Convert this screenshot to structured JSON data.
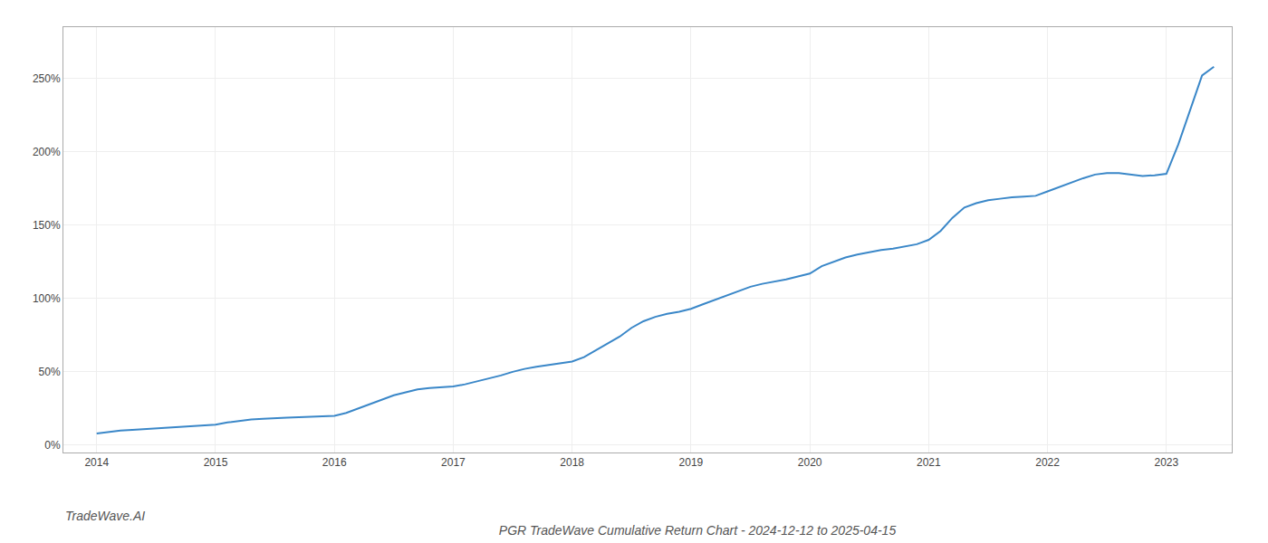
{
  "chart_data": {
    "type": "line",
    "title": "PGR TradeWave Cumulative Return Chart - 2024-12-12 to 2025-04-15",
    "annotations": [
      "TradeWave.AI"
    ],
    "color": "#3a87c8",
    "grid": true,
    "xlim": [
      2013.72,
      2023.55
    ],
    "ylim": [
      -0.05,
      2.85
    ],
    "xticks": [
      2014,
      2015,
      2016,
      2017,
      2018,
      2019,
      2020,
      2021,
      2022,
      2023
    ],
    "yticks": [
      {
        "value": 0.0,
        "label": "0%"
      },
      {
        "value": 0.5,
        "label": "50%"
      },
      {
        "value": 1.0,
        "label": "100%"
      },
      {
        "value": 1.5,
        "label": "150%"
      },
      {
        "value": 2.0,
        "label": "200%"
      },
      {
        "value": 2.5,
        "label": "250%"
      }
    ],
    "x": [
      2014.0,
      2014.1,
      2014.2,
      2014.3,
      2014.4,
      2014.5,
      2014.6,
      2014.7,
      2014.8,
      2014.9,
      2015.0,
      2015.1,
      2015.2,
      2015.3,
      2015.4,
      2015.5,
      2015.6,
      2015.7,
      2015.8,
      2015.9,
      2016.0,
      2016.1,
      2016.2,
      2016.3,
      2016.4,
      2016.5,
      2016.6,
      2016.7,
      2016.8,
      2016.9,
      2017.0,
      2017.1,
      2017.2,
      2017.3,
      2017.4,
      2017.5,
      2017.6,
      2017.7,
      2017.8,
      2017.9,
      2018.0,
      2018.1,
      2018.2,
      2018.3,
      2018.4,
      2018.5,
      2018.6,
      2018.7,
      2018.8,
      2018.9,
      2019.0,
      2019.1,
      2019.2,
      2019.3,
      2019.4,
      2019.5,
      2019.6,
      2019.7,
      2019.8,
      2019.9,
      2020.0,
      2020.1,
      2020.2,
      2020.3,
      2020.4,
      2020.5,
      2020.6,
      2020.7,
      2020.8,
      2020.9,
      2021.0,
      2021.1,
      2021.2,
      2021.3,
      2021.4,
      2021.5,
      2021.6,
      2021.7,
      2021.8,
      2021.9,
      2022.0,
      2022.1,
      2022.2,
      2022.3,
      2022.4,
      2022.5,
      2022.6,
      2022.7,
      2022.8,
      2022.9,
      2023.0,
      2023.1,
      2023.2,
      2023.3,
      2023.4
    ],
    "values": [
      0.08,
      0.09,
      0.1,
      0.105,
      0.11,
      0.115,
      0.12,
      0.125,
      0.13,
      0.135,
      0.14,
      0.155,
      0.165,
      0.175,
      0.18,
      0.185,
      0.188,
      0.19,
      0.192,
      0.194,
      0.2,
      0.22,
      0.25,
      0.28,
      0.31,
      0.34,
      0.36,
      0.38,
      0.39,
      0.395,
      0.4,
      0.415,
      0.435,
      0.455,
      0.475,
      0.5,
      0.52,
      0.535,
      0.548,
      0.56,
      0.57,
      0.6,
      0.645,
      0.69,
      0.74,
      0.8,
      0.845,
      0.875,
      0.895,
      0.91,
      0.93,
      0.96,
      0.99,
      1.02,
      1.05,
      1.08,
      1.1,
      1.115,
      1.13,
      1.15,
      1.17,
      1.22,
      1.25,
      1.28,
      1.3,
      1.315,
      1.33,
      1.34,
      1.355,
      1.37,
      1.4,
      1.46,
      1.55,
      1.62,
      1.65,
      1.67,
      1.68,
      1.69,
      1.695,
      1.7,
      1.73,
      1.76,
      1.79,
      1.82,
      1.845,
      1.855,
      1.855,
      1.845,
      1.835,
      1.84,
      1.85,
      2.05,
      2.28,
      2.52,
      2.58
    ]
  }
}
